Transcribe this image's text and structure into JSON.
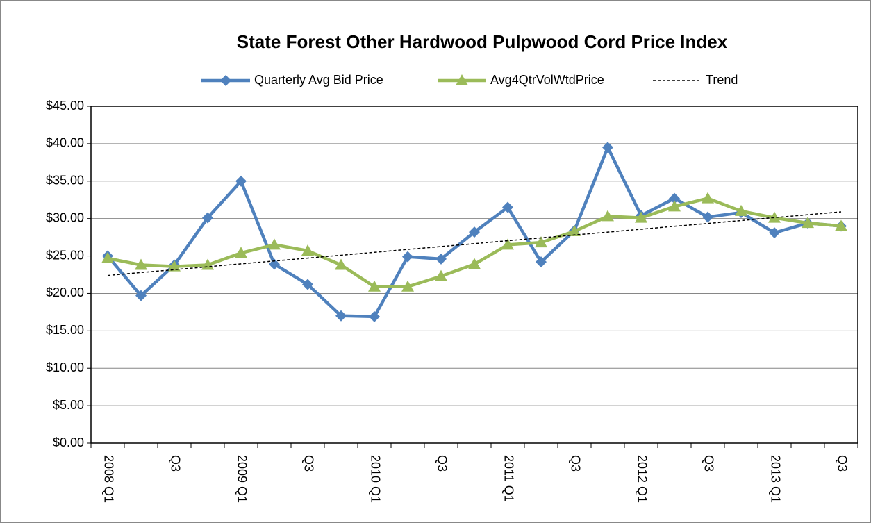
{
  "chart_data": {
    "type": "line",
    "title": "State Forest Other Hardwood Pulpwood Cord Price Index",
    "categories": [
      "2008 Q1",
      null,
      "Q3",
      null,
      "2009 Q1",
      null,
      "Q3",
      null,
      "2010 Q1",
      null,
      "Q3",
      null,
      "2011 Q1",
      null,
      "Q3",
      null,
      "2012 Q1",
      null,
      "Q3",
      null,
      "2013 Q1",
      null,
      "Q3"
    ],
    "series": [
      {
        "name": "Quarterly Avg Bid Price",
        "color": "#4f81bd",
        "marker": "diamond",
        "values": [
          25.0,
          19.7,
          23.8,
          30.1,
          35.0,
          23.9,
          21.2,
          17.0,
          16.9,
          24.9,
          24.6,
          28.2,
          31.5,
          24.2,
          28.4,
          39.5,
          30.4,
          32.7,
          30.2,
          30.8,
          28.1,
          29.4,
          29.0
        ]
      },
      {
        "name": "Avg4QtrVolWtdPrice",
        "color": "#9bbb59",
        "marker": "triangle",
        "values": [
          24.7,
          23.8,
          23.6,
          23.8,
          25.4,
          26.5,
          25.7,
          23.8,
          20.9,
          20.9,
          22.3,
          23.9,
          26.5,
          26.8,
          28.3,
          30.3,
          30.1,
          31.6,
          32.7,
          31.0,
          30.1,
          29.4,
          29.0
        ]
      },
      {
        "name": "Trend",
        "color": "#000000",
        "marker": "none",
        "dashed": true,
        "values": [
          22.4,
          22.79,
          23.17,
          23.56,
          23.95,
          24.33,
          24.72,
          25.1,
          25.49,
          25.88,
          26.26,
          26.65,
          27.04,
          27.42,
          27.81,
          28.19,
          28.58,
          28.97,
          29.35,
          29.74,
          30.13,
          30.51,
          30.9
        ]
      }
    ],
    "ylim": [
      0,
      45
    ],
    "yticks": [
      {
        "value": 0,
        "label": "$0.00"
      },
      {
        "value": 5,
        "label": "$5.00"
      },
      {
        "value": 10,
        "label": "$10.00"
      },
      {
        "value": 15,
        "label": "$15.00"
      },
      {
        "value": 20,
        "label": "$20.00"
      },
      {
        "value": 25,
        "label": "$25.00"
      },
      {
        "value": 30,
        "label": "$30.00"
      },
      {
        "value": 35,
        "label": "$35.00"
      },
      {
        "value": 40,
        "label": "$40.00"
      },
      {
        "value": 45,
        "label": "$45.00"
      }
    ],
    "grid": true
  }
}
